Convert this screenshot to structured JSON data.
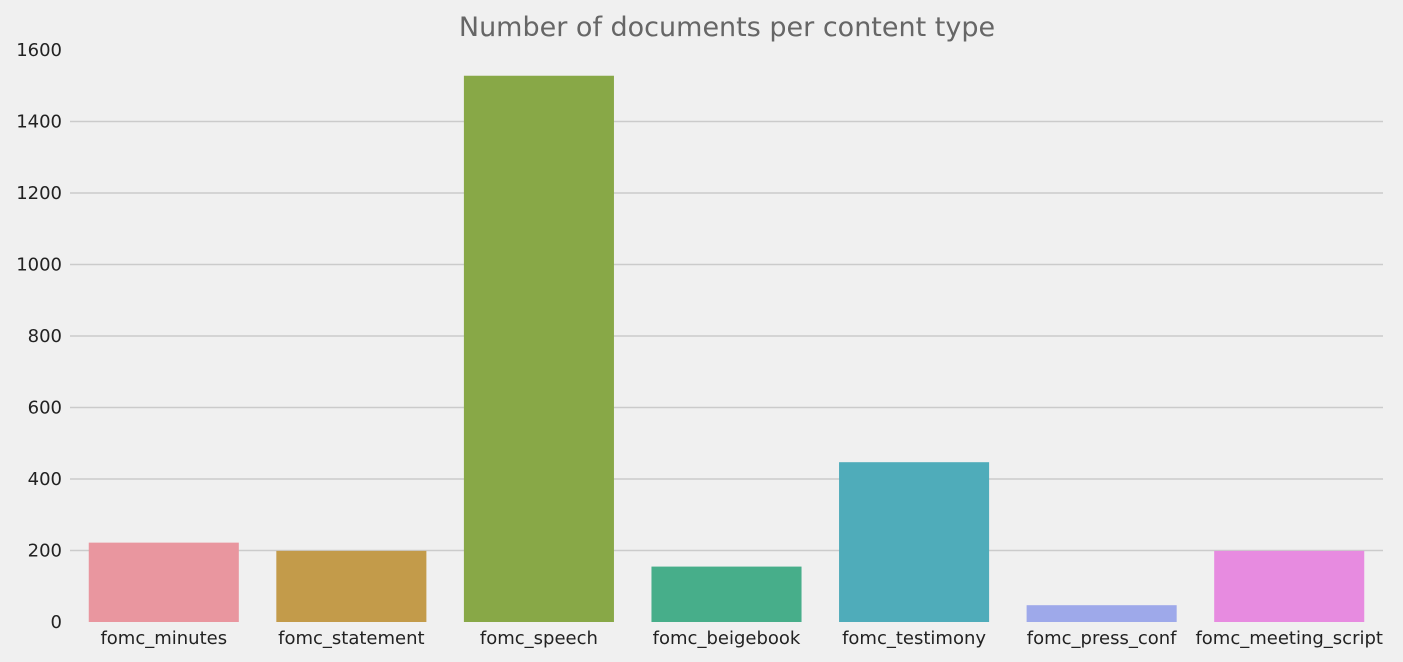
{
  "chart_data": {
    "type": "bar",
    "title": "Number of documents per content type",
    "xlabel": "",
    "ylabel": "",
    "categories": [
      "fomc_minutes",
      "fomc_statement",
      "fomc_speech",
      "fomc_beigebook",
      "fomc_testimony",
      "fomc_press_conf",
      "fomc_meeting_script"
    ],
    "values": [
      222,
      199,
      1528,
      155,
      447,
      47,
      199
    ],
    "colors": [
      "#e9969f",
      "#c39b4a",
      "#88a847",
      "#47ae8a",
      "#4facba",
      "#9ea9ea",
      "#e78be0"
    ],
    "ylim": [
      0,
      1600
    ],
    "yticks": [
      0,
      200,
      400,
      600,
      800,
      1000,
      1200,
      1400,
      1600
    ],
    "grid": "horizontal",
    "legend": "none"
  }
}
